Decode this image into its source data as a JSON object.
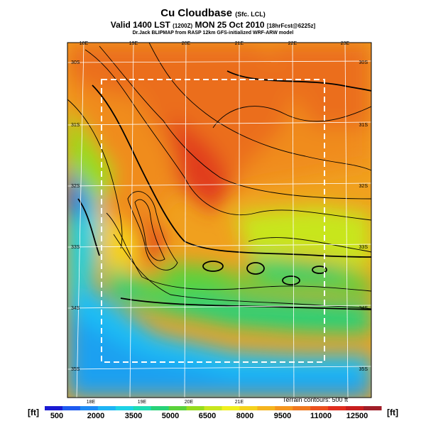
{
  "title": {
    "main": "Cu Cloudbase",
    "main_suffix": "(Sfc. LCL)",
    "valid_prefix": "Valid 1400 LST",
    "valid_code": "(1200Z)",
    "valid_date": "MON 25 Oct 2010",
    "forecast_run": "[18hrFcst@6225z]",
    "credit": "Dr.Jack BLIPMAP from RASP 12km GFS-initialized WRF-ARW model"
  },
  "map": {
    "lon_labels_top": [
      "18E",
      "19E",
      "20E",
      "21E",
      "22E",
      "23E"
    ],
    "lon_labels_bottom": [
      "18E",
      "19E",
      "20E",
      "21E"
    ],
    "lat_labels_left": [
      "30S",
      "31S",
      "32S",
      "33S",
      "34S",
      "35S"
    ],
    "lat_labels_right": [
      "30S",
      "31S",
      "32S",
      "33S",
      "34S",
      "35S"
    ],
    "terrain_note": "Terrain contours: 500 ft"
  },
  "colorbar": {
    "unit_left": "[ft]",
    "unit_right": "[ft]",
    "tick_labels": [
      "500",
      "2000",
      "3500",
      "5000",
      "6500",
      "8000",
      "9500",
      "11000",
      "12500"
    ],
    "colors": [
      "#1a1ad2",
      "#1e5af0",
      "#1e8cf5",
      "#1eb4f5",
      "#1ed2e6",
      "#1edcb4",
      "#28d278",
      "#5ad23c",
      "#96dc1e",
      "#c8e61e",
      "#f0f01e",
      "#f5d21e",
      "#f5b41e",
      "#f5961e",
      "#f0781e",
      "#eb501e",
      "#e12d1e",
      "#c81e1e",
      "#a01e28"
    ]
  }
}
